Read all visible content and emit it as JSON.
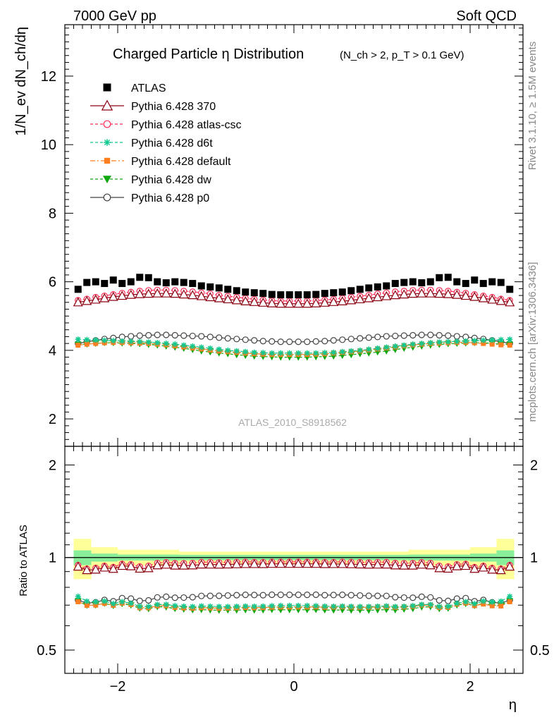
{
  "header": {
    "left": "7000 GeV pp",
    "right": "Soft QCD"
  },
  "side": {
    "rivet": "Rivet 3.1.10, ≥ 1.5M events",
    "mcplots": "mcplots.cern.ch [arXiv:1306.3436]"
  },
  "colors": {
    "atlas": "#000000",
    "p370": "#8b0010",
    "atlascsc": "#ff2a55",
    "d6t": "#10c890",
    "default": "#ff7f20",
    "dw": "#10a810",
    "p0": "#444444",
    "band_inner": "#88ee99",
    "band_outer": "#ffff99"
  },
  "chart_data": [
    {
      "type": "scatter",
      "title": "Charged Particle η Distribution",
      "title_cuts": "(N_ch > 2, p_T > 0.1 GeV)",
      "ylabel": "1/N_ev dN_ch/dη",
      "watermark": "ATLAS_2010_S8918562",
      "xlim": [
        -2.6,
        2.6
      ],
      "ylim": [
        1.2,
        13.5
      ],
      "yticks": [
        "2",
        "4",
        "6",
        "8",
        "10",
        "12"
      ],
      "legend_position": "top-left",
      "x": [
        -2.45,
        -2.35,
        -2.25,
        -2.15,
        -2.05,
        -1.95,
        -1.85,
        -1.75,
        -1.65,
        -1.55,
        -1.45,
        -1.35,
        -1.25,
        -1.15,
        -1.05,
        -0.95,
        -0.85,
        -0.75,
        -0.65,
        -0.55,
        -0.45,
        -0.35,
        -0.25,
        -0.15,
        -0.05,
        0.05,
        0.15,
        0.25,
        0.35,
        0.45,
        0.55,
        0.65,
        0.75,
        0.85,
        0.95,
        1.05,
        1.15,
        1.25,
        1.35,
        1.45,
        1.55,
        1.65,
        1.75,
        1.85,
        1.95,
        2.05,
        2.15,
        2.25,
        2.35,
        2.45
      ],
      "series": [
        {
          "name": "ATLAS",
          "values": [
            5.78,
            5.98,
            6.0,
            5.95,
            6.05,
            5.95,
            6.0,
            6.13,
            6.12,
            6.0,
            5.97,
            6.0,
            5.98,
            5.95,
            5.88,
            5.85,
            5.82,
            5.78,
            5.74,
            5.7,
            5.68,
            5.66,
            5.63,
            5.62,
            5.62,
            5.62,
            5.62,
            5.63,
            5.66,
            5.68,
            5.7,
            5.74,
            5.78,
            5.82,
            5.85,
            5.88,
            5.95,
            5.98,
            6.0,
            5.97,
            6.0,
            6.12,
            6.13,
            6.0,
            5.95,
            6.05,
            5.95,
            6.0,
            5.98,
            5.78
          ]
        },
        {
          "name": "Pythia 6.428 370",
          "values": [
            5.4,
            5.44,
            5.48,
            5.52,
            5.56,
            5.59,
            5.62,
            5.64,
            5.65,
            5.66,
            5.66,
            5.65,
            5.63,
            5.61,
            5.58,
            5.55,
            5.52,
            5.49,
            5.46,
            5.43,
            5.41,
            5.39,
            5.37,
            5.36,
            5.36,
            5.36,
            5.36,
            5.37,
            5.39,
            5.41,
            5.43,
            5.46,
            5.49,
            5.52,
            5.55,
            5.58,
            5.61,
            5.63,
            5.65,
            5.66,
            5.66,
            5.65,
            5.64,
            5.62,
            5.59,
            5.56,
            5.52,
            5.48,
            5.44,
            5.4
          ]
        },
        {
          "name": "Pythia 6.428 atlas-csc",
          "values": [
            5.46,
            5.5,
            5.55,
            5.59,
            5.63,
            5.67,
            5.7,
            5.73,
            5.75,
            5.76,
            5.76,
            5.75,
            5.73,
            5.71,
            5.68,
            5.65,
            5.61,
            5.58,
            5.55,
            5.52,
            5.49,
            5.47,
            5.45,
            5.44,
            5.44,
            5.44,
            5.44,
            5.45,
            5.47,
            5.49,
            5.52,
            5.55,
            5.58,
            5.61,
            5.65,
            5.68,
            5.71,
            5.73,
            5.75,
            5.76,
            5.76,
            5.75,
            5.73,
            5.7,
            5.67,
            5.63,
            5.59,
            5.55,
            5.5,
            5.46
          ]
        },
        {
          "name": "Pythia 6.428 d6t",
          "values": [
            4.32,
            4.31,
            4.3,
            4.29,
            4.28,
            4.27,
            4.26,
            4.25,
            4.24,
            4.22,
            4.2,
            4.18,
            4.15,
            4.12,
            4.09,
            4.06,
            4.03,
            4.0,
            3.98,
            3.96,
            3.94,
            3.93,
            3.92,
            3.92,
            3.92,
            3.92,
            3.92,
            3.92,
            3.93,
            3.94,
            3.96,
            3.98,
            4.0,
            4.03,
            4.06,
            4.09,
            4.12,
            4.15,
            4.18,
            4.2,
            4.22,
            4.24,
            4.25,
            4.26,
            4.27,
            4.28,
            4.29,
            4.3,
            4.31,
            4.32
          ]
        },
        {
          "name": "Pythia 6.428 default",
          "values": [
            4.15,
            4.18,
            4.2,
            4.22,
            4.23,
            4.23,
            4.22,
            4.21,
            4.2,
            4.18,
            4.16,
            4.13,
            4.1,
            4.07,
            4.04,
            4.01,
            3.98,
            3.96,
            3.94,
            3.92,
            3.9,
            3.89,
            3.88,
            3.88,
            3.88,
            3.88,
            3.88,
            3.89,
            3.9,
            3.92,
            3.94,
            3.96,
            3.98,
            4.01,
            4.04,
            4.07,
            4.1,
            4.13,
            4.16,
            4.18,
            4.2,
            4.21,
            4.22,
            4.23,
            4.23,
            4.22,
            4.2,
            4.18,
            4.16,
            4.15
          ]
        },
        {
          "name": "Pythia 6.428 dw",
          "values": [
            4.17,
            4.18,
            4.2,
            4.22,
            4.22,
            4.21,
            4.2,
            4.19,
            4.17,
            4.15,
            4.12,
            4.09,
            4.06,
            4.02,
            3.98,
            3.95,
            3.92,
            3.9,
            3.87,
            3.85,
            3.83,
            3.82,
            3.81,
            3.8,
            3.8,
            3.8,
            3.8,
            3.81,
            3.82,
            3.83,
            3.85,
            3.87,
            3.9,
            3.92,
            3.95,
            3.98,
            4.02,
            4.06,
            4.09,
            4.12,
            4.15,
            4.17,
            4.19,
            4.2,
            4.21,
            4.22,
            4.22,
            4.2,
            4.18,
            4.17
          ]
        },
        {
          "name": "Pythia 6.428 p0",
          "values": [
            4.2,
            4.25,
            4.29,
            4.33,
            4.36,
            4.39,
            4.41,
            4.43,
            4.44,
            4.45,
            4.45,
            4.44,
            4.43,
            4.42,
            4.41,
            4.39,
            4.37,
            4.35,
            4.33,
            4.31,
            4.29,
            4.27,
            4.26,
            4.25,
            4.25,
            4.25,
            4.25,
            4.26,
            4.27,
            4.29,
            4.31,
            4.33,
            4.35,
            4.37,
            4.39,
            4.41,
            4.42,
            4.43,
            4.44,
            4.45,
            4.45,
            4.44,
            4.43,
            4.41,
            4.39,
            4.36,
            4.33,
            4.29,
            4.25,
            4.2
          ]
        }
      ]
    },
    {
      "type": "scatter",
      "ylabel": "Ratio to ATLAS",
      "xlabel": "η",
      "xlim": [
        -2.6,
        2.6
      ],
      "ylim": [
        0.42,
        2.3
      ],
      "log_y": true,
      "yticks": [
        "0.5",
        "1",
        "2"
      ],
      "xticks": [
        "−2",
        "0",
        "2"
      ],
      "band_inner": [
        [
          -2.5,
          -2.3,
          0.055
        ],
        [
          -2.3,
          -2.0,
          0.03
        ],
        [
          -2.0,
          -1.3,
          0.022
        ],
        [
          -1.3,
          1.3,
          0.02
        ],
        [
          1.3,
          2.0,
          0.022
        ],
        [
          2.0,
          2.3,
          0.03
        ],
        [
          2.3,
          2.5,
          0.055
        ]
      ],
      "band_outer": [
        [
          -2.5,
          -2.3,
          0.15
        ],
        [
          -2.3,
          -2.0,
          0.08
        ],
        [
          -2.0,
          -1.3,
          0.06
        ],
        [
          -1.3,
          1.3,
          0.045
        ],
        [
          1.3,
          2.0,
          0.06
        ],
        [
          2.0,
          2.3,
          0.08
        ],
        [
          2.3,
          2.5,
          0.15
        ]
      ]
    }
  ]
}
